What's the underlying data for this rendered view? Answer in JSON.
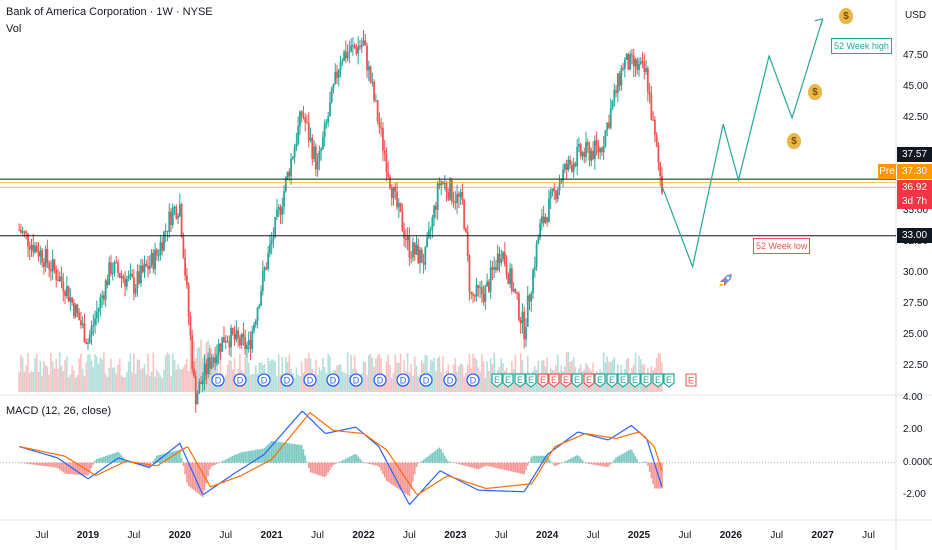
{
  "header": {
    "symbol_line": "Bank of America Corporation · 1W · NYSE",
    "vol_label": "Vol",
    "currency": "USD",
    "macd_label": "MACD (12, 26, close)"
  },
  "price_axis": [
    "47.50",
    "45.00",
    "42.50",
    "35.00",
    "32.50",
    "30.00",
    "27.50",
    "25.00",
    "22.50"
  ],
  "macd_axis": [
    "4.00",
    "2.00",
    "0.0000",
    "-2.00"
  ],
  "time_axis": [
    "Jul",
    "2019",
    "Jul",
    "2020",
    "Jul",
    "2021",
    "Jul",
    "2022",
    "Jul",
    "2023",
    "Jul",
    "2024",
    "Jul",
    "2025",
    "Jul",
    "2026",
    "Jul",
    "2027",
    "Jul"
  ],
  "markers": {
    "dividend": "D",
    "earnings": "E",
    "earnings_future": "E"
  },
  "levels": {
    "high_label": "52 Week high",
    "low_label": "52 Week low",
    "resistance": "37.57",
    "pre_label": "Pre",
    "pre_value": "37.30",
    "last_value": "36.92",
    "countdown": "3d 7h",
    "support": "33.00"
  },
  "colors": {
    "up": "#26a69a",
    "down": "#ef5350",
    "macd_line": "#2962ff",
    "signal_line": "#ff6d00",
    "projection": "#26a69a",
    "pre": "#ff9800"
  },
  "chart_data": [
    {
      "type": "candlestick",
      "title": "Bank of America Corporation · 1W · NYSE",
      "ylabel": "USD",
      "ylim": [
        21.5,
        51
      ],
      "x_range": [
        "2018-04",
        "2027-12"
      ],
      "close_path": [
        {
          "x": "2018-04",
          "y": 33.5
        },
        {
          "x": "2018-07",
          "y": 31.5
        },
        {
          "x": "2018-10",
          "y": 29.0
        },
        {
          "x": "2019-01",
          "y": 24.5
        },
        {
          "x": "2019-04",
          "y": 30.5
        },
        {
          "x": "2019-07",
          "y": 29.0
        },
        {
          "x": "2019-10",
          "y": 31.5
        },
        {
          "x": "2019-12",
          "y": 35.0
        },
        {
          "x": "2020-01",
          "y": 35.5
        },
        {
          "x": "2020-03",
          "y": 20.0
        },
        {
          "x": "2020-05",
          "y": 23.0
        },
        {
          "x": "2020-07",
          "y": 25.0
        },
        {
          "x": "2020-10",
          "y": 24.0
        },
        {
          "x": "2020-12",
          "y": 30.0
        },
        {
          "x": "2021-02",
          "y": 35.0
        },
        {
          "x": "2021-05",
          "y": 43.0
        },
        {
          "x": "2021-07",
          "y": 38.5
        },
        {
          "x": "2021-10",
          "y": 47.5
        },
        {
          "x": "2022-01",
          "y": 48.5
        },
        {
          "x": "2022-03",
          "y": 42.0
        },
        {
          "x": "2022-05",
          "y": 36.0
        },
        {
          "x": "2022-07",
          "y": 32.0
        },
        {
          "x": "2022-09",
          "y": 31.0
        },
        {
          "x": "2022-11",
          "y": 37.5
        },
        {
          "x": "2023-02",
          "y": 35.5
        },
        {
          "x": "2023-03",
          "y": 28.0
        },
        {
          "x": "2023-05",
          "y": 28.5
        },
        {
          "x": "2023-07",
          "y": 32.0
        },
        {
          "x": "2023-10",
          "y": 25.5
        },
        {
          "x": "2023-12",
          "y": 33.5
        },
        {
          "x": "2024-03",
          "y": 38.0
        },
        {
          "x": "2024-05",
          "y": 39.5
        },
        {
          "x": "2024-08",
          "y": 40.0
        },
        {
          "x": "2024-11",
          "y": 47.0
        },
        {
          "x": "2025-01",
          "y": 46.5
        },
        {
          "x": "2025-02",
          "y": 46.0
        },
        {
          "x": "2025-03",
          "y": 41.0
        },
        {
          "x": "2025-04",
          "y": 36.92
        }
      ],
      "volume_relative": "bars along bottom of price pane",
      "projection": [
        {
          "x": "2025-04",
          "y": 37.0
        },
        {
          "x": "2025-08",
          "y": 30.5
        },
        {
          "x": "2025-12",
          "y": 42.0
        },
        {
          "x": "2026-02",
          "y": 37.5
        },
        {
          "x": "2026-06",
          "y": 47.5
        },
        {
          "x": "2026-09",
          "y": 42.5
        },
        {
          "x": "2027-01",
          "y": 50.5
        }
      ],
      "horizontal_levels": [
        37.57,
        33.0
      ],
      "last_price": 36.92,
      "pre_market": 37.3
    },
    {
      "type": "line",
      "title": "MACD (12, 26, close)",
      "ylim": [
        -3.2,
        4.0
      ],
      "series": [
        {
          "name": "MACD",
          "values": [
            {
              "x": "2018-04",
              "y": 1.0
            },
            {
              "x": "2018-09",
              "y": 0.3
            },
            {
              "x": "2019-01",
              "y": -1.0
            },
            {
              "x": "2019-05",
              "y": 0.3
            },
            {
              "x": "2019-09",
              "y": -0.3
            },
            {
              "x": "2020-01",
              "y": 1.2
            },
            {
              "x": "2020-04",
              "y": -2.0
            },
            {
              "x": "2020-08",
              "y": -0.7
            },
            {
              "x": "2020-12",
              "y": 0.5
            },
            {
              "x": "2021-05",
              "y": 3.2
            },
            {
              "x": "2021-08",
              "y": 1.8
            },
            {
              "x": "2021-12",
              "y": 2.2
            },
            {
              "x": "2022-03",
              "y": 1.0
            },
            {
              "x": "2022-07",
              "y": -2.6
            },
            {
              "x": "2022-11",
              "y": -0.5
            },
            {
              "x": "2023-04",
              "y": -1.7
            },
            {
              "x": "2023-10",
              "y": -1.8
            },
            {
              "x": "2024-01",
              "y": 0.5
            },
            {
              "x": "2024-05",
              "y": 1.9
            },
            {
              "x": "2024-09",
              "y": 1.4
            },
            {
              "x": "2024-12",
              "y": 2.3
            },
            {
              "x": "2025-02",
              "y": 1.5
            },
            {
              "x": "2025-04",
              "y": -1.5
            }
          ]
        },
        {
          "name": "Signal",
          "values": [
            {
              "x": "2018-04",
              "y": 1.0
            },
            {
              "x": "2018-10",
              "y": 0.4
            },
            {
              "x": "2019-02",
              "y": -0.8
            },
            {
              "x": "2019-06",
              "y": 0.1
            },
            {
              "x": "2019-10",
              "y": -0.2
            },
            {
              "x": "2020-02",
              "y": 1.0
            },
            {
              "x": "2020-05",
              "y": -1.5
            },
            {
              "x": "2020-09",
              "y": -0.8
            },
            {
              "x": "2021-01",
              "y": 0.2
            },
            {
              "x": "2021-06",
              "y": 3.1
            },
            {
              "x": "2021-09",
              "y": 2.0
            },
            {
              "x": "2022-01",
              "y": 1.8
            },
            {
              "x": "2022-04",
              "y": 0.8
            },
            {
              "x": "2022-08",
              "y": -2.0
            },
            {
              "x": "2022-12",
              "y": -0.8
            },
            {
              "x": "2023-05",
              "y": -1.6
            },
            {
              "x": "2023-11",
              "y": -1.3
            },
            {
              "x": "2024-02",
              "y": 1.0
            },
            {
              "x": "2024-06",
              "y": 1.8
            },
            {
              "x": "2024-10",
              "y": 1.5
            },
            {
              "x": "2025-01",
              "y": 1.9
            },
            {
              "x": "2025-03",
              "y": 1.0
            },
            {
              "x": "2025-04",
              "y": -0.5
            }
          ]
        }
      ],
      "histogram": "MACD minus Signal"
    }
  ]
}
